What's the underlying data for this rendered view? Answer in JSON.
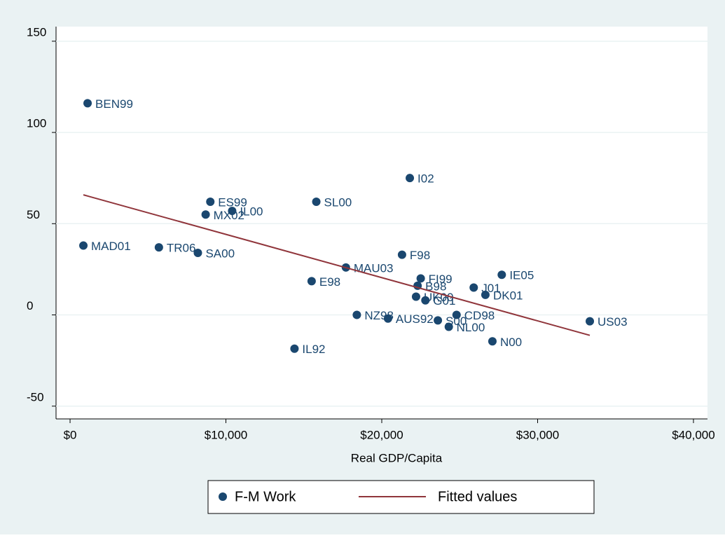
{
  "chart_data": {
    "type": "scatter",
    "xlabel": "Real GDP/Capita",
    "xlim": [
      -900,
      40900
    ],
    "xticks": [
      {
        "value": 0,
        "label": "$0"
      },
      {
        "value": 10000,
        "label": "$10,000"
      },
      {
        "value": 20000,
        "label": "$20,000"
      },
      {
        "value": 30000,
        "label": "$30,000"
      },
      {
        "value": 40000,
        "label": "$40,000"
      }
    ],
    "ylim": [
      -57,
      158
    ],
    "yticks": [
      -50,
      0,
      50,
      100,
      150
    ],
    "grid": true,
    "legend": "bottom",
    "series": [
      {
        "name": "F-M Work",
        "type": "scatter",
        "color": "#1a476f",
        "labels": [
          "BEN99",
          "MAD01",
          "TR06",
          "SA00",
          "ES99",
          "MX02",
          "IL00",
          "SL00",
          "I02",
          "F98",
          "MAU03",
          "E98",
          "FI99",
          "B98",
          "J01",
          "UK00",
          "G01",
          "DK01",
          "IE05",
          "NZ98",
          "AUS92",
          "S00",
          "CD98",
          "NL00",
          "N00",
          "US03",
          "IL92"
        ],
        "x": [
          1124,
          854,
          5700,
          8200,
          9000,
          8700,
          10400,
          15800,
          21800,
          21300,
          17700,
          15500,
          22500,
          22300,
          25900,
          22200,
          22800,
          26650,
          27700,
          18400,
          20400,
          23600,
          24800,
          24300,
          27100,
          33350,
          14400
        ],
        "values": [
          116,
          38,
          37,
          34,
          62,
          55,
          57,
          62,
          75,
          33,
          26,
          18.5,
          20,
          16,
          15,
          10,
          8,
          11,
          22,
          0,
          -2,
          -3,
          0,
          -6.5,
          -14.5,
          -3.5,
          -18.5
        ]
      },
      {
        "name": "Fitted values",
        "type": "line",
        "color": "#90353b",
        "x": [
          854,
          33350
        ],
        "values": [
          65.8,
          -11.2
        ]
      }
    ]
  }
}
